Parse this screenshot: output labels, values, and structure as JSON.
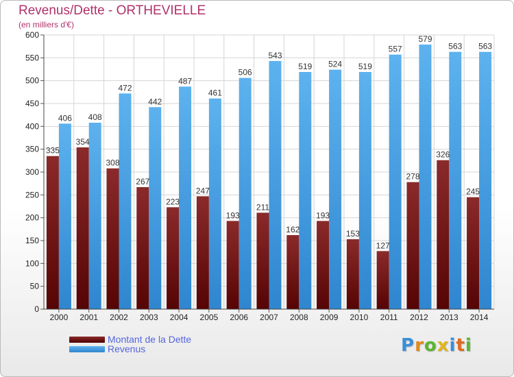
{
  "header": {
    "title": "Revenus/Dette - ORTHEVIELLE",
    "subtitle": "(en milliers d'€)"
  },
  "chart_data": {
    "type": "bar",
    "categories": [
      "2000",
      "2001",
      "2002",
      "2003",
      "2004",
      "2005",
      "2006",
      "2007",
      "2008",
      "2009",
      "2010",
      "2011",
      "2012",
      "2013",
      "2014"
    ],
    "series": [
      {
        "name": "Montant de la Dette",
        "color": "#7a1a1a",
        "values": [
          335,
          354,
          308,
          267,
          223,
          247,
          193,
          211,
          162,
          193,
          153,
          127,
          278,
          326,
          245
        ]
      },
      {
        "name": "Revenus",
        "color": "#4aa3e6",
        "values": [
          406,
          408,
          472,
          442,
          487,
          461,
          506,
          543,
          519,
          524,
          519,
          557,
          579,
          563,
          563
        ]
      }
    ],
    "ylim": [
      0,
      600
    ],
    "yticks": [
      0,
      50,
      100,
      150,
      200,
      250,
      300,
      350,
      400,
      450,
      500,
      550,
      600
    ],
    "grid": true,
    "legend_position": "bottom-left"
  },
  "legend": {
    "items": [
      {
        "label": "Montant de la Dette",
        "color": "#6a1010"
      },
      {
        "label": "Revenus",
        "color": "#3d9be0"
      }
    ]
  },
  "logo": {
    "letters": [
      {
        "ch": "P",
        "color": "#3a8fd8"
      },
      {
        "ch": "r",
        "color": "#e08a1e"
      },
      {
        "ch": "o",
        "color": "#5cb531"
      },
      {
        "ch": "x",
        "color": "#e0b51e"
      },
      {
        "ch": "i",
        "color": "#3a8fd8"
      },
      {
        "ch": "t",
        "color": "#e06a1e"
      },
      {
        "ch": "i",
        "color": "#5cb531"
      }
    ]
  }
}
